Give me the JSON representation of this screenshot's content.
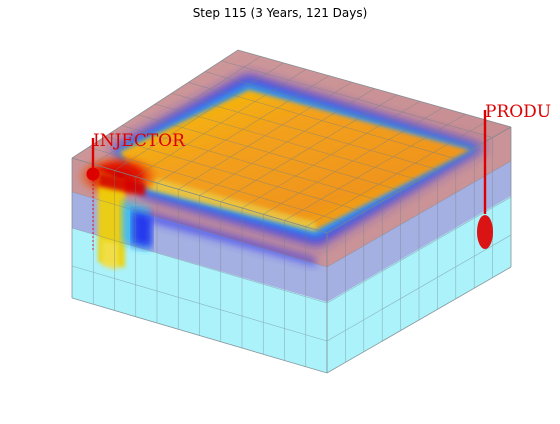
{
  "figure": {
    "title": "Step 115 (3 Years, 121 Days)"
  },
  "wells": {
    "injector": {
      "name": "INJECTOR",
      "color": "#dd0000"
    },
    "producer": {
      "name": "PRODU",
      "color": "#dd0000"
    }
  },
  "colors": {
    "top_layer": "#c48a8f",
    "middle_layer": "#9aa6df",
    "bottom_layer": "#9ff0fb",
    "grid_line": "#6f7f86",
    "front_blue": "#2222ee",
    "saturation_orange": "#f39a1a",
    "saturation_red": "#dd0000"
  }
}
